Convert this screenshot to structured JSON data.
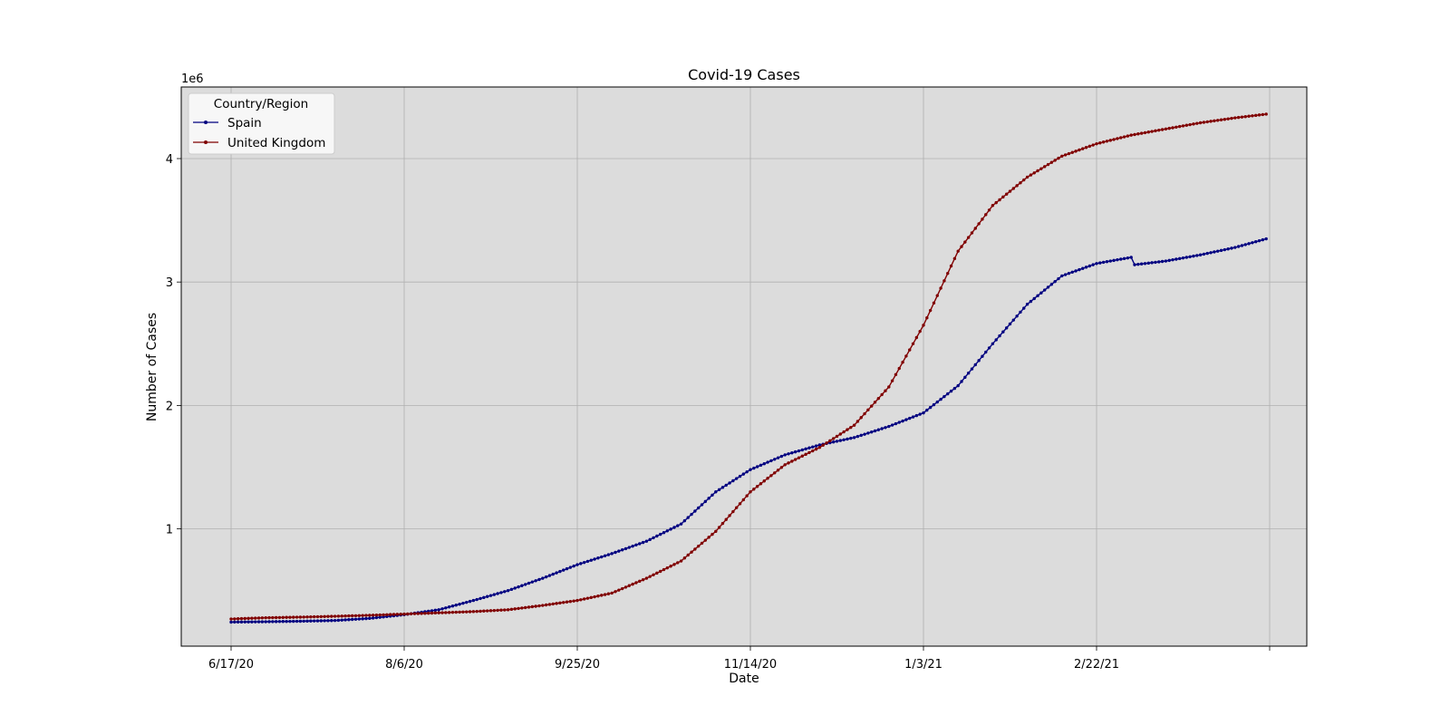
{
  "chart_data": {
    "type": "line",
    "title": "Covid-19 Cases",
    "xlabel": "Date",
    "ylabel": "Number of Cases",
    "y_offset_text": "1e6",
    "x_range": [
      "2020-06-17",
      "2021-04-12"
    ],
    "x_tick_dates": [
      "2020-06-17",
      "2020-08-06",
      "2020-09-25",
      "2020-11-14",
      "2021-01-03",
      "2021-02-22",
      "2021-04-13"
    ],
    "x_tick_labels": [
      "6/17/20",
      "8/6/20",
      "9/25/20",
      "11/14/20",
      "1/3/21",
      "2/22/21",
      ""
    ],
    "y_ticks": [
      1,
      2,
      3,
      4
    ],
    "y_tick_labels": [
      "1",
      "2",
      "3",
      "4"
    ],
    "ylim": [
      0.05,
      4.58
    ],
    "y_unit": "millions",
    "grid": true,
    "legend": {
      "title": "Country/Region",
      "placement": "upper-left"
    },
    "series": [
      {
        "name": "Spain",
        "color": "#000080",
        "points": [
          [
            "2020-06-17",
            0.245
          ],
          [
            "2020-06-27",
            0.248
          ],
          [
            "2020-07-07",
            0.252
          ],
          [
            "2020-07-17",
            0.258
          ],
          [
            "2020-07-27",
            0.275
          ],
          [
            "2020-08-06",
            0.305
          ],
          [
            "2020-08-16",
            0.345
          ],
          [
            "2020-08-26",
            0.42
          ],
          [
            "2020-09-05",
            0.5
          ],
          [
            "2020-09-15",
            0.6
          ],
          [
            "2020-09-25",
            0.71
          ],
          [
            "2020-10-05",
            0.8
          ],
          [
            "2020-10-15",
            0.9
          ],
          [
            "2020-10-25",
            1.04
          ],
          [
            "2020-11-04",
            1.3
          ],
          [
            "2020-11-14",
            1.48
          ],
          [
            "2020-11-24",
            1.6
          ],
          [
            "2020-12-04",
            1.68
          ],
          [
            "2020-12-14",
            1.74
          ],
          [
            "2020-12-24",
            1.83
          ],
          [
            "2021-01-03",
            1.94
          ],
          [
            "2021-01-13",
            2.16
          ],
          [
            "2021-01-23",
            2.5
          ],
          [
            "2021-02-02",
            2.82
          ],
          [
            "2021-02-12",
            3.05
          ],
          [
            "2021-02-22",
            3.15
          ],
          [
            "2021-03-04",
            3.2
          ],
          [
            "2021-03-05",
            3.14
          ],
          [
            "2021-03-14",
            3.17
          ],
          [
            "2021-03-24",
            3.22
          ],
          [
            "2021-04-03",
            3.28
          ],
          [
            "2021-04-12",
            3.35
          ]
        ]
      },
      {
        "name": "United Kingdom",
        "color": "#800000",
        "points": [
          [
            "2020-06-17",
            0.27
          ],
          [
            "2020-06-27",
            0.28
          ],
          [
            "2020-07-07",
            0.285
          ],
          [
            "2020-07-17",
            0.292
          ],
          [
            "2020-07-27",
            0.3
          ],
          [
            "2020-08-06",
            0.31
          ],
          [
            "2020-08-16",
            0.32
          ],
          [
            "2020-08-26",
            0.33
          ],
          [
            "2020-09-05",
            0.345
          ],
          [
            "2020-09-15",
            0.38
          ],
          [
            "2020-09-25",
            0.42
          ],
          [
            "2020-10-05",
            0.48
          ],
          [
            "2020-10-15",
            0.6
          ],
          [
            "2020-10-25",
            0.74
          ],
          [
            "2020-11-04",
            0.98
          ],
          [
            "2020-11-14",
            1.3
          ],
          [
            "2020-11-24",
            1.52
          ],
          [
            "2020-12-04",
            1.66
          ],
          [
            "2020-12-14",
            1.84
          ],
          [
            "2020-12-24",
            2.15
          ],
          [
            "2021-01-03",
            2.65
          ],
          [
            "2021-01-13",
            3.25
          ],
          [
            "2021-01-23",
            3.62
          ],
          [
            "2021-02-02",
            3.85
          ],
          [
            "2021-02-12",
            4.02
          ],
          [
            "2021-02-22",
            4.12
          ],
          [
            "2021-03-04",
            4.19
          ],
          [
            "2021-03-14",
            4.24
          ],
          [
            "2021-03-24",
            4.29
          ],
          [
            "2021-04-03",
            4.33
          ],
          [
            "2021-04-12",
            4.36
          ]
        ]
      }
    ]
  }
}
